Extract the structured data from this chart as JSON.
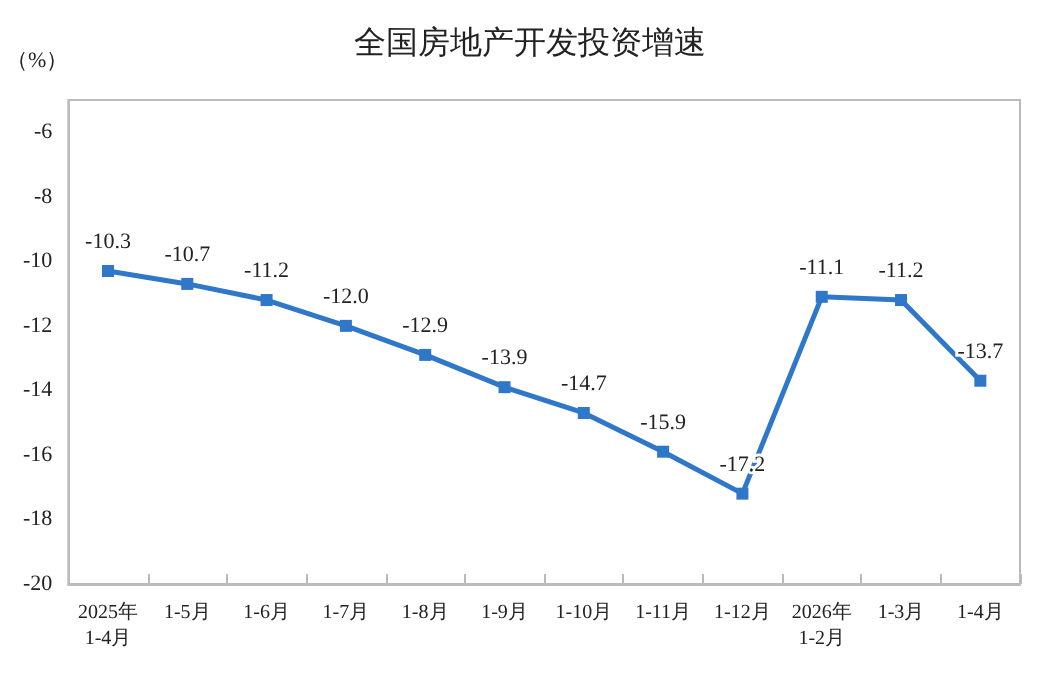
{
  "chart_data": {
    "type": "line",
    "title": "全国房地产开发投资增速",
    "ylabel": "（%）",
    "categories": [
      "2025年\n1-4月",
      "1-5月",
      "1-6月",
      "1-7月",
      "1-8月",
      "1-9月",
      "1-10月",
      "1-11月",
      "1-12月",
      "2026年\n1-2月",
      "1-3月",
      "1-4月"
    ],
    "series": [
      {
        "color": "#2f77c9",
        "values": [
          -10.3,
          -10.7,
          -11.2,
          -12.0,
          -12.9,
          -13.9,
          -14.7,
          -15.9,
          -17.2,
          -11.1,
          -11.2,
          -13.7
        ],
        "value_labels": [
          "-10.3",
          "-10.7",
          "-11.2",
          "-12.0",
          "-12.9",
          "-13.9",
          "-14.7",
          "-15.9",
          "-17.2",
          "-11.1",
          "-11.2",
          "-13.7"
        ]
      }
    ],
    "ylim": [
      -20,
      -5
    ],
    "yticks": [
      -20,
      -18,
      -16,
      -14,
      -12,
      -10,
      -8,
      -6
    ],
    "grid": false,
    "marker": "square",
    "line_style": "solid"
  }
}
